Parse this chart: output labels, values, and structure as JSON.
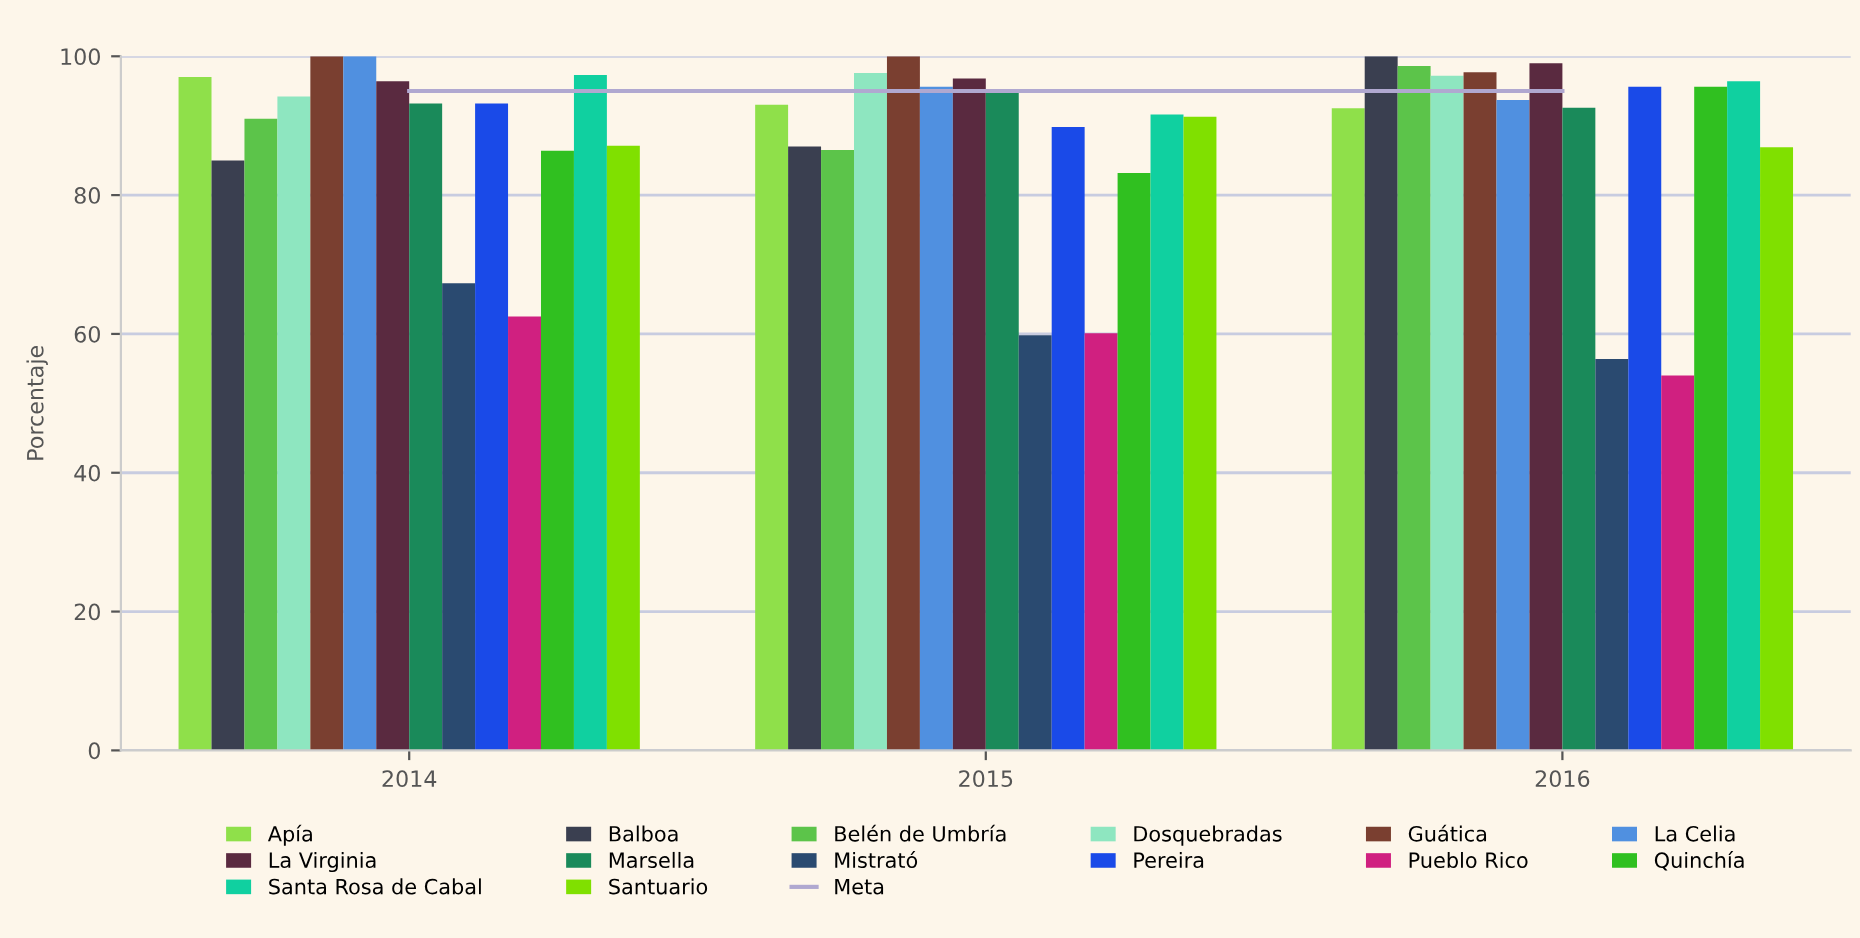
{
  "chart_data": {
    "type": "bar",
    "ylabel": "Porcentaje",
    "categories": [
      "2014",
      "2015",
      "2016"
    ],
    "ylim": [
      0,
      100
    ],
    "yticks": [
      0,
      20,
      40,
      60,
      80,
      100
    ],
    "grid": "y",
    "legend": "bottom",
    "series": [
      {
        "name": "Apía",
        "color": "#8fe04a",
        "values": [
          97,
          93,
          92.5
        ]
      },
      {
        "name": "Balboa",
        "color": "#3a3f50",
        "values": [
          85,
          87,
          100
        ]
      },
      {
        "name": "Belén de Umbría",
        "color": "#5cc44a",
        "values": [
          91,
          86.5,
          98.6
        ]
      },
      {
        "name": "Dosquebradas",
        "color": "#8ee6c0",
        "values": [
          94.2,
          97.6,
          97.2
        ]
      },
      {
        "name": "Guática",
        "color": "#7a3f30",
        "values": [
          100,
          100,
          97.7
        ]
      },
      {
        "name": "La Celia",
        "color": "#5090e0",
        "values": [
          100,
          95.6,
          93.7
        ]
      },
      {
        "name": "La Virginia",
        "color": "#5a2a40",
        "values": [
          96.4,
          96.8,
          99
        ]
      },
      {
        "name": "Marsella",
        "color": "#1a8a5a",
        "values": [
          93.2,
          94.7,
          92.6
        ]
      },
      {
        "name": "Mistrató",
        "color": "#2a4a70",
        "values": [
          67.3,
          59.8,
          56.4
        ]
      },
      {
        "name": "Pereira",
        "color": "#1a4ae8",
        "values": [
          93.2,
          89.8,
          95.6
        ]
      },
      {
        "name": "Pueblo Rico",
        "color": "#d02080",
        "values": [
          62.5,
          60.1,
          54
        ]
      },
      {
        "name": "Quinchía",
        "color": "#30c020",
        "values": [
          86.4,
          83.2,
          95.6
        ]
      },
      {
        "name": "Santa Rosa de Cabal",
        "color": "#10d0a0",
        "values": [
          97.3,
          91.6,
          96.4
        ]
      },
      {
        "name": "Santuario",
        "color": "#80e000",
        "values": [
          87.1,
          91.3,
          86.9
        ]
      },
      {
        "name": "Meta",
        "color": "#b0a8d0",
        "type": "line",
        "values": [
          95,
          95,
          95
        ]
      }
    ]
  }
}
